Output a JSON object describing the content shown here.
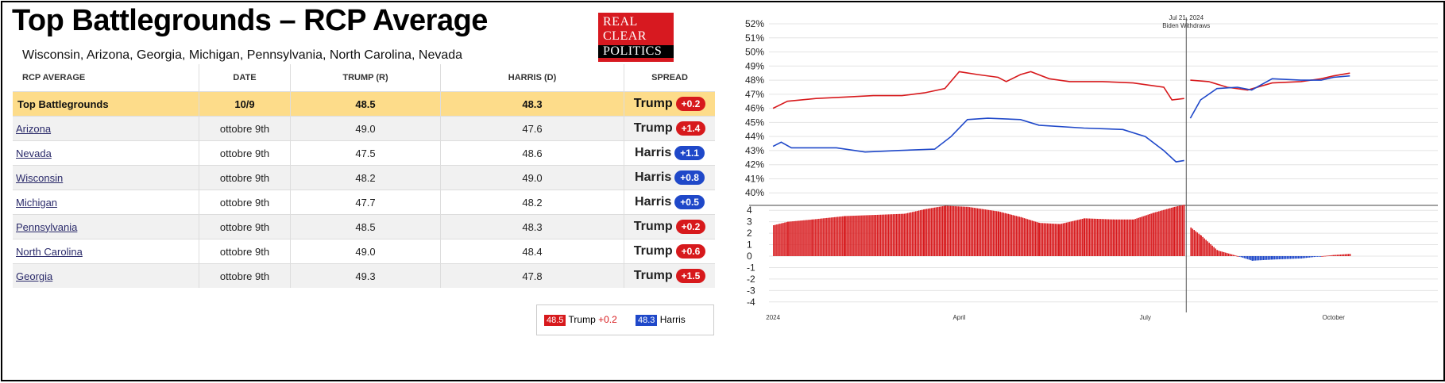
{
  "page": {
    "title": "Top Battlegrounds – RCP Average",
    "subtitle": "Wisconsin, Arizona, Georgia, Michigan, Pennsylvania, North Carolina, Nevada",
    "logo_lines": [
      "REAL",
      "CLEAR",
      "POLITICS"
    ]
  },
  "table": {
    "headers": [
      "RCP AVERAGE",
      "DATE",
      "TRUMP (R)",
      "HARRIS (D)",
      "SPREAD"
    ],
    "summary": {
      "state": "Top Battlegrounds",
      "date": "10/9",
      "trump": "48.5",
      "harris": "48.3",
      "spread_name": "Trump",
      "spread_value": "+0.2",
      "spread_color": "#d7191c"
    },
    "rows": [
      {
        "state": "Arizona",
        "date": "ottobre 9th",
        "trump": "49.0",
        "harris": "47.6",
        "spread_name": "Trump",
        "spread_value": "+1.4",
        "spread_color": "#d7191c"
      },
      {
        "state": "Nevada",
        "date": "ottobre 9th",
        "trump": "47.5",
        "harris": "48.6",
        "spread_name": "Harris",
        "spread_value": "+1.1",
        "spread_color": "#1f48c9"
      },
      {
        "state": "Wisconsin",
        "date": "ottobre 9th",
        "trump": "48.2",
        "harris": "49.0",
        "spread_name": "Harris",
        "spread_value": "+0.8",
        "spread_color": "#1f48c9"
      },
      {
        "state": "Michigan",
        "date": "ottobre 9th",
        "trump": "47.7",
        "harris": "48.2",
        "spread_name": "Harris",
        "spread_value": "+0.5",
        "spread_color": "#1f48c9"
      },
      {
        "state": "Pennsylvania",
        "date": "ottobre 9th",
        "trump": "48.5",
        "harris": "48.3",
        "spread_name": "Trump",
        "spread_value": "+0.2",
        "spread_color": "#d7191c"
      },
      {
        "state": "North Carolina",
        "date": "ottobre 9th",
        "trump": "49.0",
        "harris": "48.4",
        "spread_name": "Trump",
        "spread_value": "+0.6",
        "spread_color": "#d7191c"
      },
      {
        "state": "Georgia",
        "date": "ottobre 9th",
        "trump": "49.3",
        "harris": "47.8",
        "spread_name": "Trump",
        "spread_value": "+1.5",
        "spread_color": "#d7191c"
      }
    ]
  },
  "legend": {
    "trump_value": "48.5",
    "trump_label": "Trump",
    "trump_spread": "+0.2",
    "harris_value": "48.3",
    "harris_label": "Harris",
    "trump_color": "#d7191c",
    "harris_color": "#1f48c9"
  },
  "chart_data": {
    "type": "line",
    "colors": {
      "trump": "#d7191c",
      "harris": "#1f48c9",
      "grid": "#e4e4e4"
    },
    "top": {
      "ylim": [
        39,
        52
      ],
      "yticks": [
        40,
        41,
        42,
        43,
        44,
        45,
        46,
        47,
        48,
        49,
        50,
        51,
        52
      ],
      "ytick_suffix": "%",
      "series": [
        {
          "name": "Trump",
          "segments": [
            [
              [
                "2024-01-01",
                46.0
              ],
              [
                "2024-01-08",
                46.5
              ],
              [
                "2024-01-22",
                46.7
              ],
              [
                "2024-02-05",
                46.8
              ],
              [
                "2024-02-19",
                46.9
              ],
              [
                "2024-03-04",
                46.9
              ],
              [
                "2024-03-15",
                47.1
              ],
              [
                "2024-03-25",
                47.4
              ],
              [
                "2024-04-01",
                48.6
              ],
              [
                "2024-04-10",
                48.4
              ],
              [
                "2024-04-20",
                48.2
              ],
              [
                "2024-04-24",
                47.9
              ],
              [
                "2024-05-01",
                48.4
              ],
              [
                "2024-05-06",
                48.6
              ],
              [
                "2024-05-15",
                48.1
              ],
              [
                "2024-05-25",
                47.9
              ],
              [
                "2024-06-10",
                47.9
              ],
              [
                "2024-06-25",
                47.8
              ],
              [
                "2024-07-05",
                47.6
              ],
              [
                "2024-07-10",
                47.5
              ],
              [
                "2024-07-14",
                46.6
              ],
              [
                "2024-07-20",
                46.7
              ]
            ],
            [
              [
                "2024-07-23",
                48.0
              ],
              [
                "2024-08-01",
                47.9
              ],
              [
                "2024-08-10",
                47.5
              ],
              [
                "2024-08-20",
                47.3
              ],
              [
                "2024-09-01",
                47.8
              ],
              [
                "2024-09-15",
                47.9
              ],
              [
                "2024-09-25",
                48.1
              ],
              [
                "2024-10-01",
                48.3
              ],
              [
                "2024-10-09",
                48.5
              ]
            ]
          ]
        },
        {
          "name": "Harris",
          "segments": [
            [
              [
                "2024-01-01",
                43.3
              ],
              [
                "2024-01-05",
                43.6
              ],
              [
                "2024-01-10",
                43.2
              ],
              [
                "2024-02-01",
                43.2
              ],
              [
                "2024-02-15",
                42.9
              ],
              [
                "2024-03-01",
                43.0
              ],
              [
                "2024-03-20",
                43.1
              ],
              [
                "2024-03-28",
                44.0
              ],
              [
                "2024-04-05",
                45.2
              ],
              [
                "2024-04-15",
                45.3
              ],
              [
                "2024-05-01",
                45.2
              ],
              [
                "2024-05-10",
                44.8
              ],
              [
                "2024-06-01",
                44.6
              ],
              [
                "2024-06-20",
                44.5
              ],
              [
                "2024-07-01",
                44.0
              ],
              [
                "2024-07-10",
                43.0
              ],
              [
                "2024-07-16",
                42.2
              ],
              [
                "2024-07-20",
                42.3
              ]
            ],
            [
              [
                "2024-07-23",
                45.3
              ],
              [
                "2024-07-28",
                46.6
              ],
              [
                "2024-08-05",
                47.4
              ],
              [
                "2024-08-15",
                47.5
              ],
              [
                "2024-08-22",
                47.3
              ],
              [
                "2024-09-01",
                48.1
              ],
              [
                "2024-09-15",
                48.0
              ],
              [
                "2024-09-25",
                48.0
              ],
              [
                "2024-10-01",
                48.2
              ],
              [
                "2024-10-09",
                48.3
              ]
            ]
          ]
        }
      ]
    },
    "bottom": {
      "type": "bar",
      "ylim": [
        -4.5,
        4.5
      ],
      "yticks": [
        4,
        3,
        2,
        1,
        0,
        -1,
        -2,
        -3,
        -4
      ],
      "spread_points": [
        [
          "2024-01-01",
          2.7
        ],
        [
          "2024-01-08",
          3.0
        ],
        [
          "2024-01-20",
          3.2
        ],
        [
          "2024-02-05",
          3.5
        ],
        [
          "2024-02-20",
          3.6
        ],
        [
          "2024-03-05",
          3.7
        ],
        [
          "2024-03-15",
          4.1
        ],
        [
          "2024-03-25",
          4.4
        ],
        [
          "2024-04-05",
          4.3
        ],
        [
          "2024-04-20",
          3.9
        ],
        [
          "2024-05-01",
          3.4
        ],
        [
          "2024-05-10",
          2.9
        ],
        [
          "2024-05-20",
          2.8
        ],
        [
          "2024-06-01",
          3.3
        ],
        [
          "2024-06-15",
          3.2
        ],
        [
          "2024-06-25",
          3.2
        ],
        [
          "2024-07-05",
          3.8
        ],
        [
          "2024-07-15",
          4.3
        ],
        [
          "2024-07-20",
          4.5
        ],
        [
          "2024-07-23",
          2.5
        ],
        [
          "2024-07-28",
          1.8
        ],
        [
          "2024-08-05",
          0.5
        ],
        [
          "2024-08-15",
          0.0
        ],
        [
          "2024-08-22",
          -0.4
        ],
        [
          "2024-09-01",
          -0.3
        ],
        [
          "2024-09-15",
          -0.2
        ],
        [
          "2024-09-25",
          0.0
        ],
        [
          "2024-10-01",
          0.1
        ],
        [
          "2024-10-09",
          0.2
        ]
      ]
    },
    "x": {
      "start": "2023-12-30",
      "end": "2024-11-21",
      "tick_labels": [
        [
          "2024-01-01",
          "2024"
        ],
        [
          "2024-04-01",
          "April"
        ],
        [
          "2024-07-01",
          "July"
        ],
        [
          "2024-10-01",
          "October"
        ]
      ]
    },
    "annotation": {
      "date": "2024-07-21",
      "line1": "Jul 21, 2024",
      "line2": "Biden Withdraws"
    }
  }
}
